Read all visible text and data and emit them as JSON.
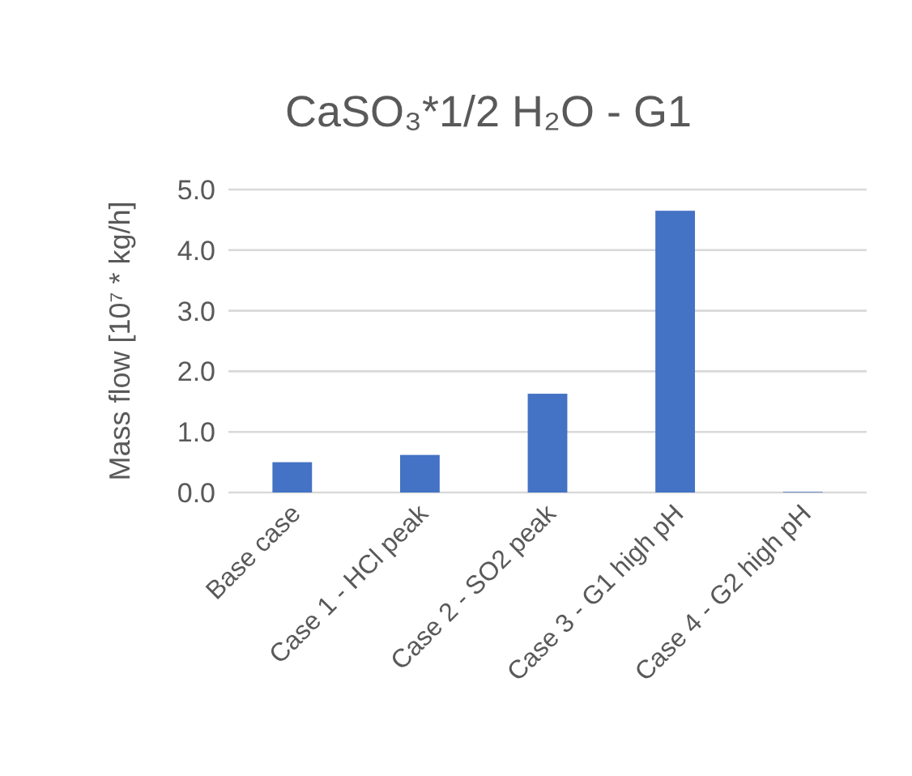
{
  "chart_data": {
    "type": "bar",
    "title": "CaSO₃*1/2 H₂O - G1",
    "ylabel": "Mass flow [10⁷ * kg/h]",
    "categories": [
      "Base case",
      "Case 1 - HCl peak",
      "Case 2 - SO2 peak",
      "Case 3 - G1 high pH",
      "Case 4 - G2 high pH"
    ],
    "values": [
      0.5,
      0.62,
      1.63,
      4.65,
      0.01
    ],
    "color": "#4472c4",
    "ylim": [
      0,
      5
    ],
    "yticks": [
      {
        "value": 0,
        "label": "0.0"
      },
      {
        "value": 1,
        "label": "1.0"
      },
      {
        "value": 2,
        "label": "2.0"
      },
      {
        "value": 3,
        "label": "3.0"
      },
      {
        "value": 4,
        "label": "4.0"
      },
      {
        "value": 5,
        "label": "5.0"
      }
    ],
    "grid": true
  }
}
